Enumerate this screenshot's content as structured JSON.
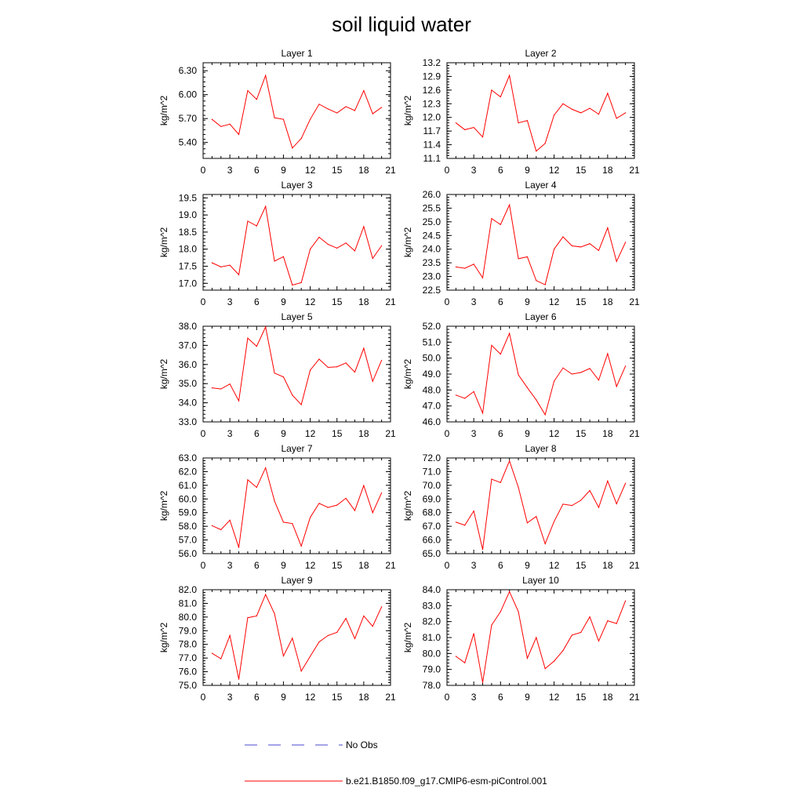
{
  "title": "soil liquid water",
  "ylabel": "kg/m^2",
  "line_color": "#ff0000",
  "obs_color": "#4a4ad0",
  "legend": [
    {
      "label": "No Obs",
      "style": "dashed",
      "color": "#4a4ad0"
    },
    {
      "label": "b.e21.B1850.f09_g17.CMIP6-esm-piControl.001",
      "style": "solid",
      "color": "#ff0000"
    }
  ],
  "chart_data": [
    {
      "type": "line",
      "title": "Layer 1",
      "ylabel": "kg/m^2",
      "xlim": [
        0,
        21
      ],
      "ylim": [
        5.2,
        6.4
      ],
      "xticks": [
        "0",
        "3",
        "6",
        "9",
        "12",
        "15",
        "18",
        "21"
      ],
      "yticks": [
        "5.40",
        "5.70",
        "6.00",
        "6.30"
      ],
      "ytick_values": [
        5.4,
        5.7,
        6.0,
        6.3
      ],
      "x": [
        1,
        2,
        3,
        4,
        5,
        6,
        7,
        8,
        9,
        10,
        11,
        12,
        13,
        14,
        15,
        16,
        17,
        18,
        19,
        20
      ],
      "series": [
        {
          "values": [
            5.69,
            5.6,
            5.63,
            5.5,
            6.05,
            5.94,
            6.24,
            5.71,
            5.69,
            5.33,
            5.45,
            5.69,
            5.88,
            5.82,
            5.77,
            5.85,
            5.8,
            6.05,
            5.76,
            5.84
          ]
        }
      ]
    },
    {
      "type": "line",
      "title": "Layer 2",
      "ylabel": "kg/m^2",
      "xlim": [
        0,
        21
      ],
      "ylim": [
        11.1,
        13.2
      ],
      "xticks": [
        "0",
        "3",
        "6",
        "9",
        "12",
        "15",
        "18",
        "21"
      ],
      "yticks": [
        "11.1",
        "11.4",
        "11.7",
        "12.0",
        "12.3",
        "12.6",
        "12.9",
        "13.2"
      ],
      "ytick_values": [
        11.1,
        11.4,
        11.7,
        12.0,
        12.3,
        12.6,
        12.9,
        13.2
      ],
      "x": [
        1,
        2,
        3,
        4,
        5,
        6,
        7,
        8,
        9,
        10,
        11,
        12,
        13,
        14,
        15,
        16,
        17,
        18,
        19,
        20
      ],
      "series": [
        {
          "values": [
            11.88,
            11.73,
            11.78,
            11.57,
            12.6,
            12.45,
            12.92,
            11.88,
            11.93,
            11.26,
            11.43,
            12.05,
            12.3,
            12.18,
            12.1,
            12.2,
            12.07,
            12.53,
            11.98,
            12.1
          ]
        }
      ]
    },
    {
      "type": "line",
      "title": "Layer 3",
      "ylabel": "kg/m^2",
      "xlim": [
        0,
        21
      ],
      "ylim": [
        16.8,
        19.6
      ],
      "xticks": [
        "0",
        "3",
        "6",
        "9",
        "12",
        "15",
        "18",
        "21"
      ],
      "yticks": [
        "17.0",
        "17.5",
        "18.0",
        "18.5",
        "19.0",
        "19.5"
      ],
      "ytick_values": [
        17.0,
        17.5,
        18.0,
        18.5,
        19.0,
        19.5
      ],
      "x": [
        1,
        2,
        3,
        4,
        5,
        6,
        7,
        8,
        9,
        10,
        11,
        12,
        13,
        14,
        15,
        16,
        17,
        18,
        19,
        20
      ],
      "series": [
        {
          "values": [
            17.6,
            17.48,
            17.53,
            17.25,
            18.82,
            18.68,
            19.25,
            17.65,
            17.78,
            16.95,
            17.02,
            18.0,
            18.35,
            18.14,
            18.03,
            18.18,
            17.95,
            18.66,
            17.73,
            18.1
          ]
        }
      ]
    },
    {
      "type": "line",
      "title": "Layer 4",
      "ylabel": "kg/m^2",
      "xlim": [
        0,
        21
      ],
      "ylim": [
        22.5,
        26.0
      ],
      "xticks": [
        "0",
        "3",
        "6",
        "9",
        "12",
        "15",
        "18",
        "21"
      ],
      "yticks": [
        "22.5",
        "23.0",
        "23.5",
        "24.0",
        "24.5",
        "25.0",
        "25.5",
        "26.0"
      ],
      "ytick_values": [
        22.5,
        23.0,
        23.5,
        24.0,
        24.5,
        25.0,
        25.5,
        26.0
      ],
      "x": [
        1,
        2,
        3,
        4,
        5,
        6,
        7,
        8,
        9,
        10,
        11,
        12,
        13,
        14,
        15,
        16,
        17,
        18,
        19,
        20
      ],
      "series": [
        {
          "values": [
            23.35,
            23.3,
            23.45,
            22.95,
            25.12,
            24.9,
            25.62,
            23.65,
            23.72,
            22.85,
            22.7,
            24.0,
            24.45,
            24.12,
            24.08,
            24.2,
            23.95,
            24.78,
            23.55,
            24.25
          ]
        }
      ]
    },
    {
      "type": "line",
      "title": "Layer 5",
      "ylabel": "kg/m^2",
      "xlim": [
        0,
        21
      ],
      "ylim": [
        33.0,
        38.0
      ],
      "xticks": [
        "0",
        "3",
        "6",
        "9",
        "12",
        "15",
        "18",
        "21"
      ],
      "yticks": [
        "33.0",
        "34.0",
        "35.0",
        "36.0",
        "37.0",
        "38.0"
      ],
      "ytick_values": [
        33.0,
        34.0,
        35.0,
        36.0,
        37.0,
        38.0
      ],
      "x": [
        1,
        2,
        3,
        4,
        5,
        6,
        7,
        8,
        9,
        10,
        11,
        12,
        13,
        14,
        15,
        16,
        17,
        18,
        19,
        20
      ],
      "series": [
        {
          "values": [
            34.78,
            34.72,
            34.98,
            34.1,
            37.38,
            36.95,
            37.96,
            35.55,
            35.35,
            34.4,
            33.9,
            35.7,
            36.28,
            35.85,
            35.88,
            36.08,
            35.6,
            36.85,
            35.12,
            36.22
          ]
        }
      ]
    },
    {
      "type": "line",
      "title": "Layer 6",
      "ylabel": "kg/m^2",
      "xlim": [
        0,
        21
      ],
      "ylim": [
        46.0,
        52.0
      ],
      "xticks": [
        "0",
        "3",
        "6",
        "9",
        "12",
        "15",
        "18",
        "21"
      ],
      "yticks": [
        "46.0",
        "47.0",
        "48.0",
        "49.0",
        "50.0",
        "51.0",
        "52.0"
      ],
      "ytick_values": [
        46.0,
        47.0,
        48.0,
        49.0,
        50.0,
        51.0,
        52.0
      ],
      "x": [
        1,
        2,
        3,
        4,
        5,
        6,
        7,
        8,
        9,
        10,
        11,
        12,
        13,
        14,
        15,
        16,
        17,
        18,
        19,
        20
      ],
      "series": [
        {
          "values": [
            47.68,
            47.48,
            47.9,
            46.55,
            50.8,
            50.25,
            51.55,
            48.95,
            48.15,
            47.38,
            46.45,
            48.55,
            49.38,
            49.0,
            49.1,
            49.35,
            48.62,
            50.28,
            48.22,
            49.5
          ]
        }
      ]
    },
    {
      "type": "line",
      "title": "Layer 7",
      "ylabel": "kg/m^2",
      "xlim": [
        0,
        21
      ],
      "ylim": [
        56.0,
        63.0
      ],
      "xticks": [
        "0",
        "3",
        "6",
        "9",
        "12",
        "15",
        "18",
        "21"
      ],
      "yticks": [
        "56.0",
        "57.0",
        "58.0",
        "59.0",
        "60.0",
        "61.0",
        "62.0",
        "63.0"
      ],
      "ytick_values": [
        56.0,
        57.0,
        58.0,
        59.0,
        60.0,
        61.0,
        62.0,
        63.0
      ],
      "x": [
        1,
        2,
        3,
        4,
        5,
        6,
        7,
        8,
        9,
        10,
        11,
        12,
        13,
        14,
        15,
        16,
        17,
        18,
        19,
        20
      ],
      "series": [
        {
          "values": [
            58.05,
            57.75,
            58.45,
            56.45,
            61.4,
            60.85,
            62.28,
            59.85,
            58.3,
            58.2,
            56.55,
            58.65,
            59.68,
            59.38,
            59.55,
            60.05,
            59.15,
            60.98,
            59.0,
            60.45
          ]
        }
      ]
    },
    {
      "type": "line",
      "title": "Layer 8",
      "ylabel": "kg/m^2",
      "xlim": [
        0,
        21
      ],
      "ylim": [
        65.0,
        72.0
      ],
      "xticks": [
        "0",
        "3",
        "6",
        "9",
        "12",
        "15",
        "18",
        "21"
      ],
      "yticks": [
        "65.0",
        "66.0",
        "67.0",
        "68.0",
        "69.0",
        "70.0",
        "71.0",
        "72.0"
      ],
      "ytick_values": [
        65.0,
        66.0,
        67.0,
        68.0,
        69.0,
        70.0,
        71.0,
        72.0
      ],
      "x": [
        1,
        2,
        3,
        4,
        5,
        6,
        7,
        8,
        9,
        10,
        11,
        12,
        13,
        14,
        15,
        16,
        17,
        18,
        19,
        20
      ],
      "series": [
        {
          "values": [
            67.3,
            67.08,
            68.12,
            65.3,
            70.45,
            70.2,
            71.78,
            69.85,
            67.25,
            67.72,
            65.72,
            67.35,
            68.62,
            68.52,
            68.9,
            69.62,
            68.38,
            70.32,
            68.65,
            70.15
          ]
        }
      ]
    },
    {
      "type": "line",
      "title": "Layer 9",
      "ylabel": "kg/m^2",
      "xlim": [
        0,
        21
      ],
      "ylim": [
        75.0,
        82.0
      ],
      "xticks": [
        "0",
        "3",
        "6",
        "9",
        "12",
        "15",
        "18",
        "21"
      ],
      "yticks": [
        "75.0",
        "76.0",
        "77.0",
        "78.0",
        "79.0",
        "80.0",
        "81.0",
        "82.0"
      ],
      "ytick_values": [
        75.0,
        76.0,
        77.0,
        78.0,
        79.0,
        80.0,
        81.0,
        82.0
      ],
      "x": [
        1,
        2,
        3,
        4,
        5,
        6,
        7,
        8,
        9,
        10,
        11,
        12,
        13,
        14,
        15,
        16,
        17,
        18,
        19,
        20
      ],
      "series": [
        {
          "values": [
            77.35,
            76.95,
            78.65,
            75.45,
            79.95,
            80.08,
            81.65,
            80.25,
            77.15,
            78.45,
            76.05,
            77.12,
            78.18,
            78.65,
            78.88,
            79.9,
            78.42,
            80.08,
            79.32,
            80.75
          ]
        }
      ]
    },
    {
      "type": "line",
      "title": "Layer 10",
      "ylabel": "kg/m^2",
      "xlim": [
        0,
        21
      ],
      "ylim": [
        78.0,
        84.0
      ],
      "xticks": [
        "0",
        "3",
        "6",
        "9",
        "12",
        "15",
        "18",
        "21"
      ],
      "yticks": [
        "78.0",
        "79.0",
        "80.0",
        "81.0",
        "82.0",
        "83.0",
        "84.0"
      ],
      "ytick_values": [
        78.0,
        79.0,
        80.0,
        81.0,
        82.0,
        83.0,
        84.0
      ],
      "x": [
        1,
        2,
        3,
        4,
        5,
        6,
        7,
        8,
        9,
        10,
        11,
        12,
        13,
        14,
        15,
        16,
        17,
        18,
        19,
        20
      ],
      "series": [
        {
          "values": [
            79.82,
            79.42,
            81.25,
            78.18,
            81.78,
            82.62,
            83.88,
            82.62,
            79.7,
            81.0,
            79.05,
            79.52,
            80.18,
            81.15,
            81.32,
            82.3,
            80.78,
            82.05,
            81.88,
            83.3
          ]
        }
      ]
    }
  ]
}
